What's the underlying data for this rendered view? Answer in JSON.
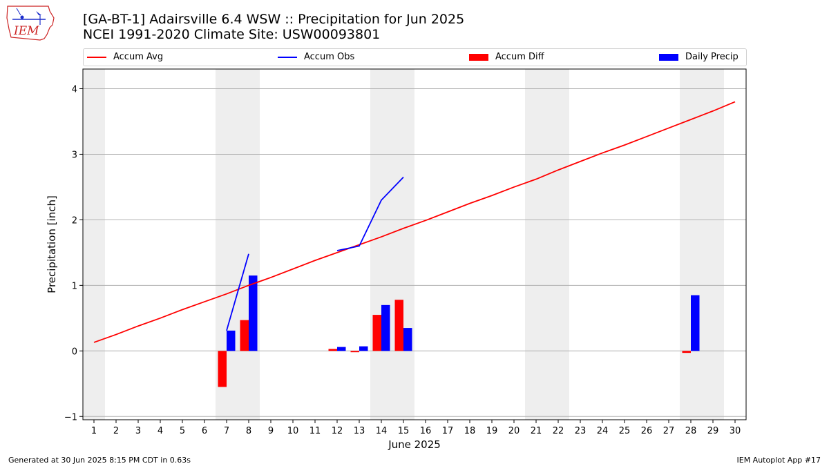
{
  "header": {
    "title_line1": "[GA-BT-1] Adairsville 6.4 WSW :: Precipitation for Jun 2025",
    "title_line2": "NCEI 1991-2020 Climate Site: USW00093801"
  },
  "logo": {
    "text": "IEM",
    "icon": "iem-iowa-logo-icon"
  },
  "legend": {
    "items": [
      {
        "label": "Accum Avg",
        "kind": "line",
        "color": "#ff0000"
      },
      {
        "label": "Accum Obs",
        "kind": "line",
        "color": "#0000ff"
      },
      {
        "label": "Accum Diff",
        "kind": "box",
        "color": "#ff0000"
      },
      {
        "label": "Daily Precip",
        "kind": "box",
        "color": "#0000ff"
      }
    ]
  },
  "footer": {
    "left": "Generated at 30 Jun 2025 8:15 PM CDT in 0.63s",
    "right": "IEM Autoplot App #17"
  },
  "chart_data": {
    "type": "bar",
    "xlabel": "June 2025",
    "ylabel": "Precipitation [inch]",
    "xlim": [
      0.5,
      30.5
    ],
    "ylim": [
      -1.05,
      4.3
    ],
    "xticks": [
      1,
      2,
      3,
      4,
      5,
      6,
      7,
      8,
      9,
      10,
      11,
      12,
      13,
      14,
      15,
      16,
      17,
      18,
      19,
      20,
      21,
      22,
      23,
      24,
      25,
      26,
      27,
      28,
      29,
      30
    ],
    "yticks": [
      -1,
      0,
      1,
      2,
      3,
      4
    ],
    "ytick_labels": [
      "−1",
      "0",
      "1",
      "2",
      "3",
      "4"
    ],
    "grid": "horizontal",
    "weekend_shading": [
      [
        0.5,
        1.5
      ],
      [
        6.5,
        8.5
      ],
      [
        13.5,
        15.5
      ],
      [
        20.5,
        22.5
      ],
      [
        27.5,
        29.5
      ]
    ],
    "accum_avg": {
      "name": "Accum Avg",
      "color": "#ff0000",
      "days": [
        1,
        2,
        3,
        4,
        5,
        6,
        7,
        8,
        9,
        10,
        11,
        12,
        13,
        14,
        15,
        16,
        17,
        18,
        19,
        20,
        21,
        22,
        23,
        24,
        25,
        26,
        27,
        28,
        29,
        30
      ],
      "values": [
        0.13,
        0.25,
        0.38,
        0.5,
        0.63,
        0.75,
        0.87,
        1.0,
        1.12,
        1.25,
        1.38,
        1.5,
        1.62,
        1.74,
        1.87,
        1.99,
        2.12,
        2.25,
        2.37,
        2.5,
        2.62,
        2.76,
        2.89,
        3.02,
        3.14,
        3.27,
        3.4,
        3.53,
        3.66,
        3.8
      ]
    },
    "accum_obs": {
      "name": "Accum Obs",
      "color": "#0000ff",
      "segments": [
        {
          "days": [
            7,
            8
          ],
          "values": [
            0.31,
            1.48
          ]
        },
        {
          "days": [
            12,
            13,
            14,
            15
          ],
          "values": [
            1.53,
            1.6,
            2.3,
            2.65
          ]
        }
      ]
    },
    "accum_diff": {
      "name": "Accum Diff",
      "color": "#ff0000",
      "days": [
        7,
        8,
        12,
        13,
        14,
        15,
        28
      ],
      "values": [
        -0.55,
        0.47,
        0.03,
        -0.02,
        0.55,
        0.78,
        -0.03
      ]
    },
    "daily_precip": {
      "name": "Daily Precip",
      "color": "#0000ff",
      "days": [
        7,
        8,
        12,
        13,
        14,
        15,
        28
      ],
      "values": [
        0.31,
        1.15,
        0.06,
        0.07,
        0.7,
        0.35,
        0.85
      ]
    }
  }
}
